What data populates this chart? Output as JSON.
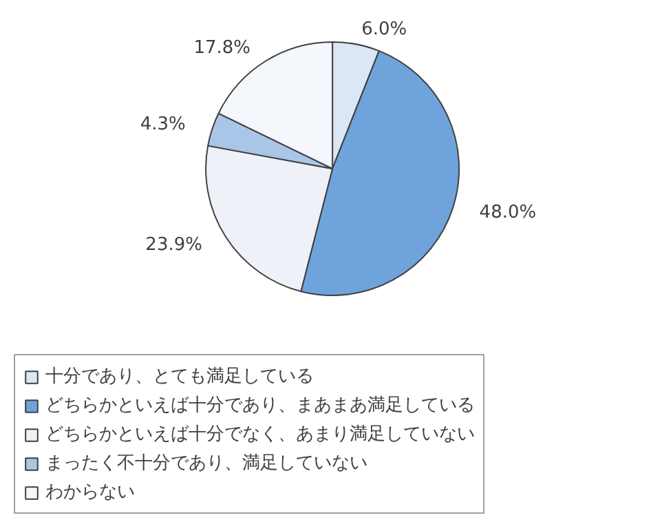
{
  "chart_data": {
    "type": "pie",
    "categories": [
      "十分であり、とても満足している",
      "どちらかといえば十分であり、まあまあ満足している",
      "どちらかといえば十分でなく、あまり満足していない",
      "まったく不十分であり、満足していない",
      "わからない"
    ],
    "values": [
      6.0,
      48.0,
      23.9,
      4.3,
      17.8
    ],
    "colors": [
      "#dbe7f5",
      "#6fa3dc",
      "#eef2f8",
      "#a9c5e8",
      "#f4f7fb"
    ],
    "value_labels": [
      "6.0%",
      "48.0%",
      "23.9%",
      "4.3%",
      "17.8%"
    ],
    "legend": "bottom"
  }
}
